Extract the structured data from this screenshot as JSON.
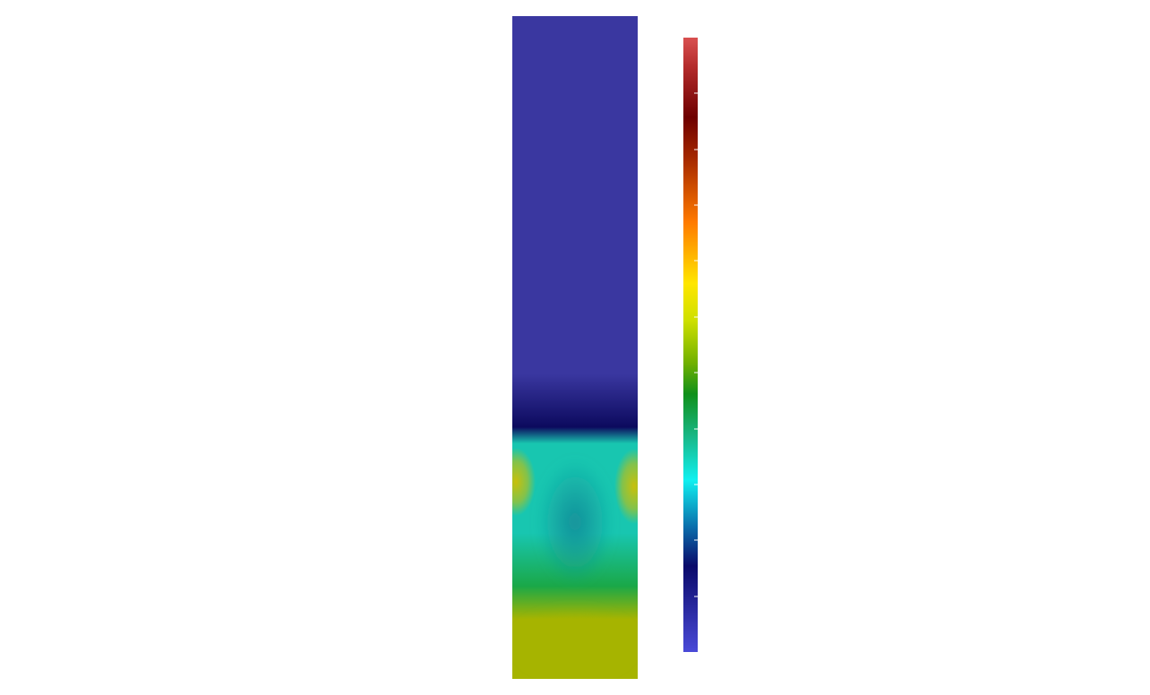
{
  "view": {
    "background": "#ffffff"
  },
  "scalar_field": {
    "description_colors": {
      "low": "#3a37a0",
      "front_dark": "#0c0a5e",
      "cyan_band": "#18c6b0",
      "teal_core": "#14909a",
      "yellow_spot": "#c8c00a",
      "green_band": "#1aa848",
      "olive_bottom": "#a6b400"
    }
  },
  "colorbar": {
    "tick_count": 10,
    "stops": [
      {
        "offset": 0.0,
        "color": "#d95050"
      },
      {
        "offset": 0.05,
        "color": "#b22a2a"
      },
      {
        "offset": 0.13,
        "color": "#6e0000"
      },
      {
        "offset": 0.2,
        "color": "#a82b00"
      },
      {
        "offset": 0.3,
        "color": "#ff7a00"
      },
      {
        "offset": 0.4,
        "color": "#ffe600"
      },
      {
        "offset": 0.46,
        "color": "#cfe000"
      },
      {
        "offset": 0.53,
        "color": "#70b000"
      },
      {
        "offset": 0.58,
        "color": "#10901a"
      },
      {
        "offset": 0.65,
        "color": "#18b888"
      },
      {
        "offset": 0.72,
        "color": "#10f0f0"
      },
      {
        "offset": 0.8,
        "color": "#0a68a8"
      },
      {
        "offset": 0.86,
        "color": "#0a0a6a"
      },
      {
        "offset": 1.0,
        "color": "#4a4ad8"
      }
    ]
  }
}
